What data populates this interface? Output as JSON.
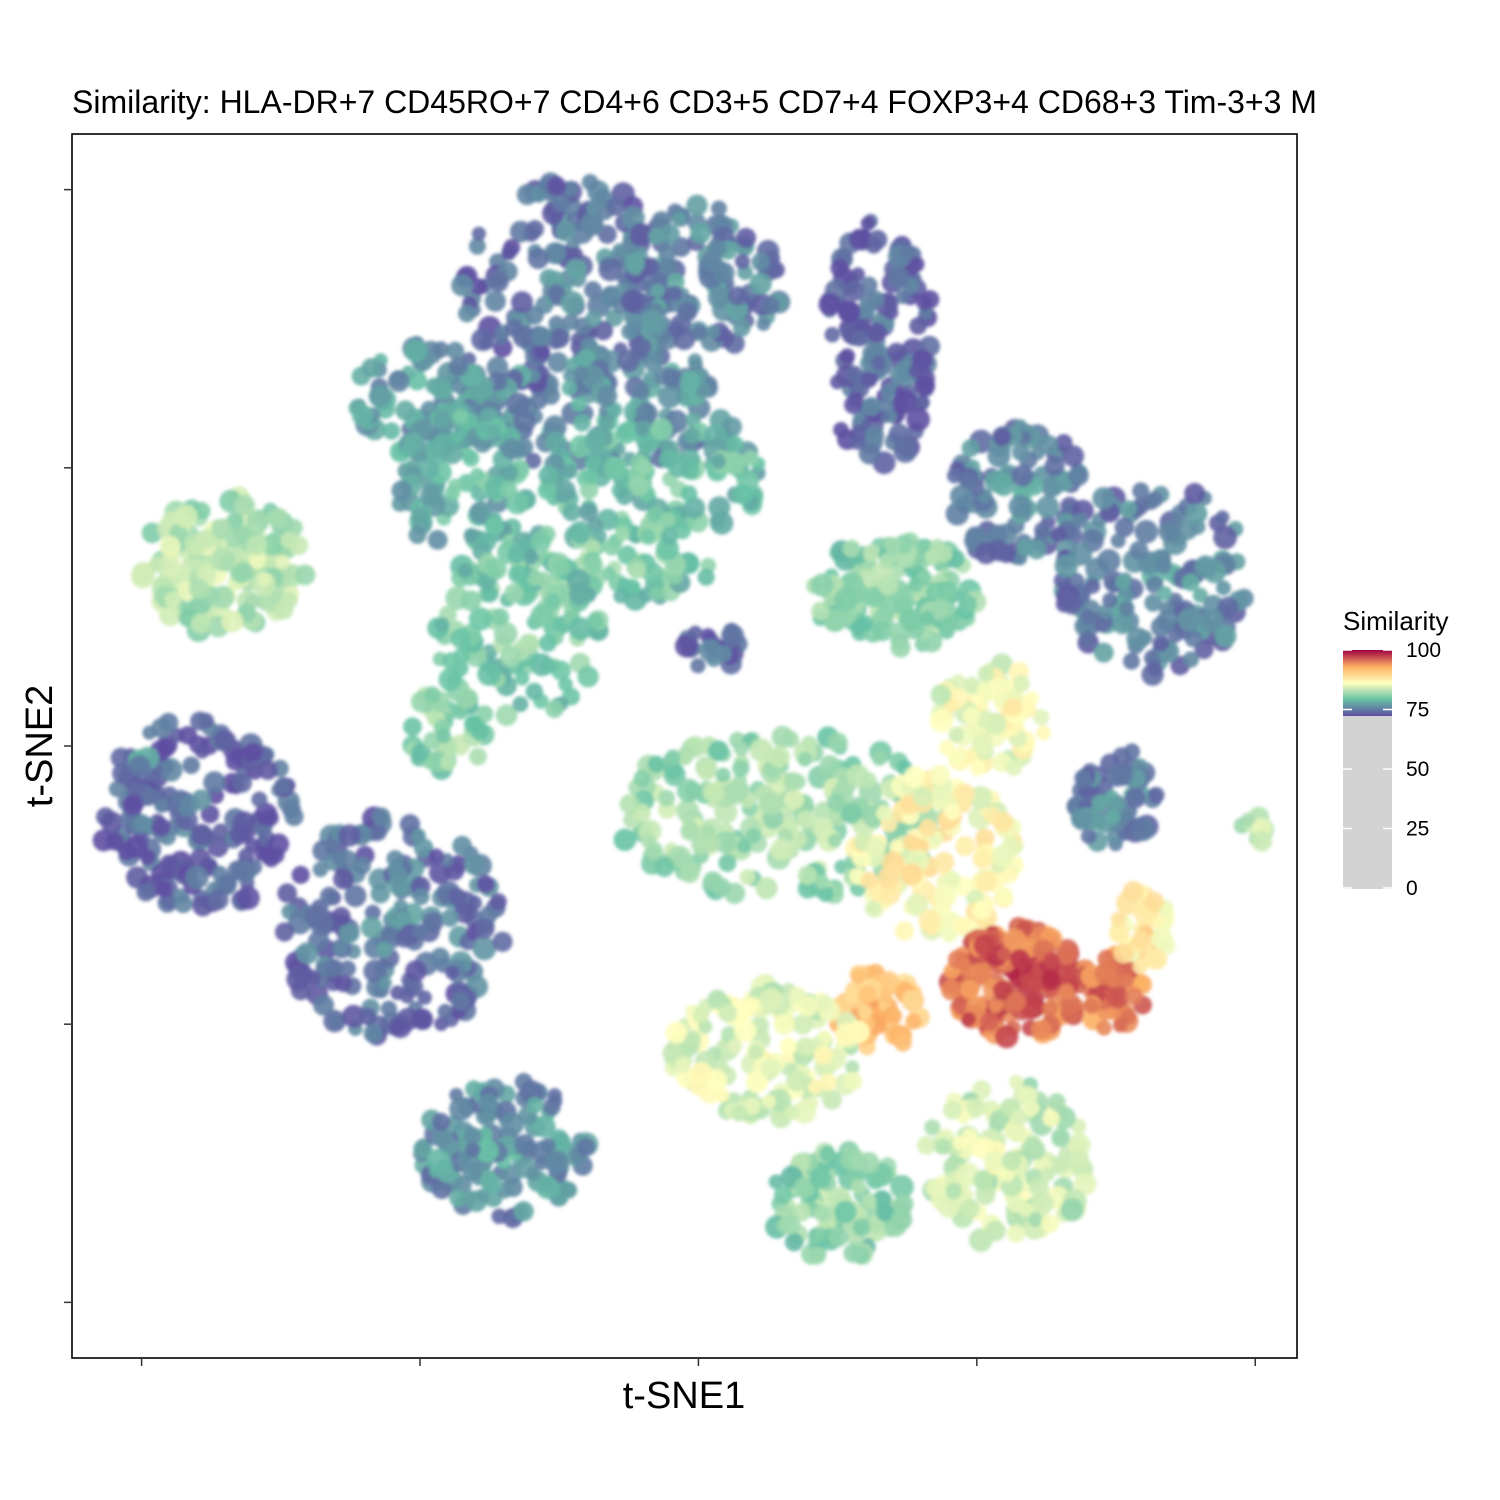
{
  "chart_data": {
    "type": "scatter",
    "title": "Similarity: HLA-DR+7 CD45RO+7 CD4+6 CD3+5 CD7+4 FOXP3+4 CD68+3 Tim-3+3 M",
    "xlabel": "t-SNE1",
    "ylabel": "t-SNE2",
    "xlim": [
      -45,
      43
    ],
    "ylim": [
      -44,
      44
    ],
    "x_ticks": [
      -40,
      -20,
      0,
      20,
      40
    ],
    "y_ticks": [
      -40,
      -20,
      0,
      20,
      40
    ],
    "tick_labels_shown": false,
    "grid": false,
    "legend": {
      "title": "Similarity",
      "position": "right",
      "ticks": [
        100,
        75,
        50,
        25,
        0
      ],
      "tick_labels": [
        "100",
        "75",
        "50",
        "25",
        "0"
      ],
      "gradient_range": [
        70,
        100
      ],
      "below_range_color": "#d3d3d3"
    },
    "color_scale": [
      "#5e4fa2",
      "#66c2a5",
      "#ffffbf",
      "#fdae61",
      "#9e0142"
    ],
    "clusters": [
      {
        "x": -9,
        "y": 33,
        "rx": 8,
        "ry": 8,
        "sim": 72,
        "n": 180
      },
      {
        "x": 0,
        "y": 33,
        "rx": 6,
        "ry": 6,
        "sim": 73,
        "n": 120
      },
      {
        "x": 13,
        "y": 29,
        "rx": 4,
        "ry": 9,
        "sim": 71,
        "n": 140
      },
      {
        "x": -7,
        "y": 24,
        "rx": 10,
        "ry": 4,
        "sim": 74,
        "n": 130
      },
      {
        "x": -20,
        "y": 25,
        "rx": 5,
        "ry": 4,
        "sim": 74,
        "n": 80
      },
      {
        "x": -17,
        "y": 19,
        "rx": 5,
        "ry": 5,
        "sim": 76,
        "n": 90
      },
      {
        "x": -3,
        "y": 19,
        "rx": 8,
        "ry": 4,
        "sim": 77,
        "n": 110
      },
      {
        "x": -34,
        "y": 13,
        "rx": 6,
        "ry": 5,
        "sim": 81,
        "n": 150
      },
      {
        "x": -8,
        "y": 13,
        "rx": 9,
        "ry": 3,
        "sim": 78,
        "n": 90
      },
      {
        "x": 23,
        "y": 18,
        "rx": 5,
        "ry": 5,
        "sim": 73,
        "n": 100
      },
      {
        "x": 33,
        "y": 12,
        "rx": 7,
        "ry": 7,
        "sim": 73,
        "n": 150
      },
      {
        "x": 14,
        "y": 11,
        "rx": 6,
        "ry": 4,
        "sim": 79,
        "n": 130
      },
      {
        "x": 1,
        "y": 7,
        "rx": 2,
        "ry": 2,
        "sim": 71,
        "n": 20
      },
      {
        "x": -13,
        "y": 8,
        "rx": 6,
        "ry": 6,
        "sim": 78,
        "n": 110
      },
      {
        "x": -18,
        "y": 1,
        "rx": 3,
        "ry": 3,
        "sim": 79,
        "n": 40
      },
      {
        "x": 21,
        "y": 2,
        "rx": 4,
        "ry": 4,
        "sim": 84,
        "n": 80
      },
      {
        "x": -36,
        "y": -5,
        "rx": 7,
        "ry": 7,
        "sim": 71,
        "n": 180
      },
      {
        "x": -22,
        "y": -13,
        "rx": 8,
        "ry": 8,
        "sim": 72,
        "n": 200
      },
      {
        "x": 6,
        "y": -5,
        "rx": 12,
        "ry": 6,
        "sim": 80,
        "n": 220
      },
      {
        "x": 17,
        "y": -8,
        "rx": 6,
        "ry": 6,
        "sim": 85,
        "n": 140
      },
      {
        "x": 30,
        "y": -4,
        "rx": 3,
        "ry": 4,
        "sim": 73,
        "n": 60
      },
      {
        "x": 23,
        "y": -17,
        "rx": 5,
        "ry": 4,
        "sim": 95,
        "n": 180
      },
      {
        "x": 30,
        "y": -18,
        "rx": 2,
        "ry": 3,
        "sim": 94,
        "n": 40
      },
      {
        "x": 13,
        "y": -19,
        "rx": 3,
        "ry": 3,
        "sim": 90,
        "n": 60
      },
      {
        "x": 5,
        "y": -22,
        "rx": 7,
        "ry": 5,
        "sim": 83,
        "n": 150
      },
      {
        "x": -14,
        "y": -29,
        "rx": 6,
        "ry": 5,
        "sim": 74,
        "n": 130
      },
      {
        "x": 10,
        "y": -33,
        "rx": 5,
        "ry": 4,
        "sim": 79,
        "n": 100
      },
      {
        "x": 22,
        "y": -30,
        "rx": 6,
        "ry": 6,
        "sim": 82,
        "n": 140
      },
      {
        "x": 32,
        "y": -13,
        "rx": 2,
        "ry": 3,
        "sim": 86,
        "n": 40
      },
      {
        "x": 40,
        "y": -6,
        "rx": 1,
        "ry": 1,
        "sim": 81,
        "n": 10
      },
      {
        "x": -40,
        "y": -1,
        "rx": 0.5,
        "ry": 0.5,
        "sim": 75,
        "n": 4
      }
    ]
  }
}
